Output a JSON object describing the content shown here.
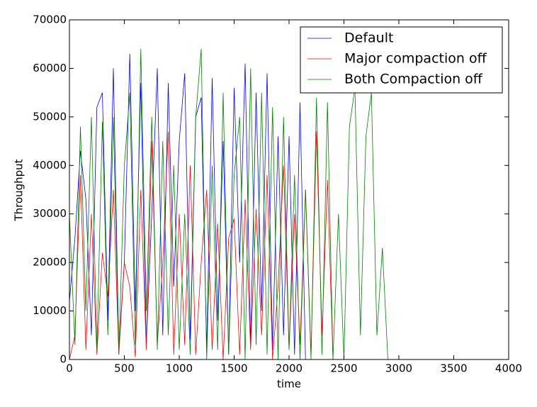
{
  "chart_data": {
    "type": "line",
    "x_label": "time",
    "y_label": "Throughput",
    "x": [
      0,
      50,
      100,
      150,
      200,
      250,
      300,
      350,
      400,
      450,
      500,
      550,
      600,
      650,
      700,
      750,
      800,
      850,
      900,
      950,
      1000,
      1050,
      1100,
      1150,
      1200,
      1250,
      1300,
      1350,
      1400,
      1450,
      1500,
      1550,
      1600,
      1650,
      1700,
      1750,
      1800,
      1850,
      1900,
      1950,
      2000,
      2050,
      2100,
      2150,
      2200,
      2250,
      2300,
      2350,
      2400,
      2450,
      2500,
      2550,
      2600,
      2650,
      2700,
      2750,
      2800,
      2850,
      2900,
      3950
    ],
    "series": [
      {
        "name": "Default",
        "color": "#0000ff",
        "values": [
          12000,
          25000,
          43000,
          33000,
          5000,
          52000,
          55000,
          8000,
          60000,
          2000,
          20000,
          63000,
          10000,
          57000,
          3000,
          30000,
          60000,
          5000,
          57000,
          15000,
          45000,
          59000,
          4000,
          50000,
          54000,
          2000,
          58000,
          8000,
          45000,
          1000,
          56000,
          20000,
          61000,
          3000,
          55000,
          10000,
          59000,
          2000,
          46000,
          5000,
          46000,
          1000,
          53000,
          0,
          0,
          0,
          0,
          0,
          0,
          0,
          0,
          0,
          0,
          0,
          0,
          0,
          0,
          0,
          0,
          0
        ]
      },
      {
        "name": "Major compaction off",
        "color": "#ff0000",
        "values": [
          0,
          5000,
          38000,
          2000,
          30000,
          1000,
          22000,
          13000,
          35000,
          1000,
          20000,
          15000,
          500,
          35000,
          2000,
          45000,
          3000,
          20000,
          47000,
          1000,
          30000,
          3000,
          40000,
          1000,
          20000,
          35000,
          2000,
          28000,
          0,
          25000,
          29000,
          1000,
          33000,
          2000,
          31000,
          5000,
          38000,
          0,
          15000,
          40000,
          2000,
          30000,
          3000,
          35000,
          1000,
          47000,
          5000,
          37000,
          0,
          0,
          0,
          0,
          0,
          0,
          0,
          0,
          0,
          0,
          0,
          0
        ]
      },
      {
        "name": "Both Compaction off",
        "color": "#008000",
        "values": [
          30000,
          3000,
          48000,
          10000,
          50000,
          2000,
          49000,
          5000,
          50000,
          1000,
          40000,
          55000,
          3000,
          64000,
          10000,
          50000,
          2000,
          45000,
          5000,
          40000,
          2000,
          30000,
          1000,
          50000,
          64000,
          0,
          40000,
          2000,
          55000,
          1000,
          38000,
          50000,
          0,
          60000,
          3000,
          55000,
          1000,
          52000,
          0,
          50000,
          2000,
          38000,
          0,
          35000,
          0,
          54000,
          1000,
          53000,
          0,
          30000,
          0,
          48000,
          56000,
          5000,
          46000,
          55000,
          5000,
          23000,
          0,
          0
        ]
      }
    ],
    "xlim": [
      0,
      4000
    ],
    "xticks": [
      0,
      500,
      1000,
      1500,
      2000,
      2500,
      3000,
      3500,
      4000
    ],
    "ylim": [
      0,
      70000
    ],
    "yticks": [
      0,
      10000,
      20000,
      30000,
      40000,
      50000,
      60000,
      70000
    ],
    "legend": "upper right"
  }
}
